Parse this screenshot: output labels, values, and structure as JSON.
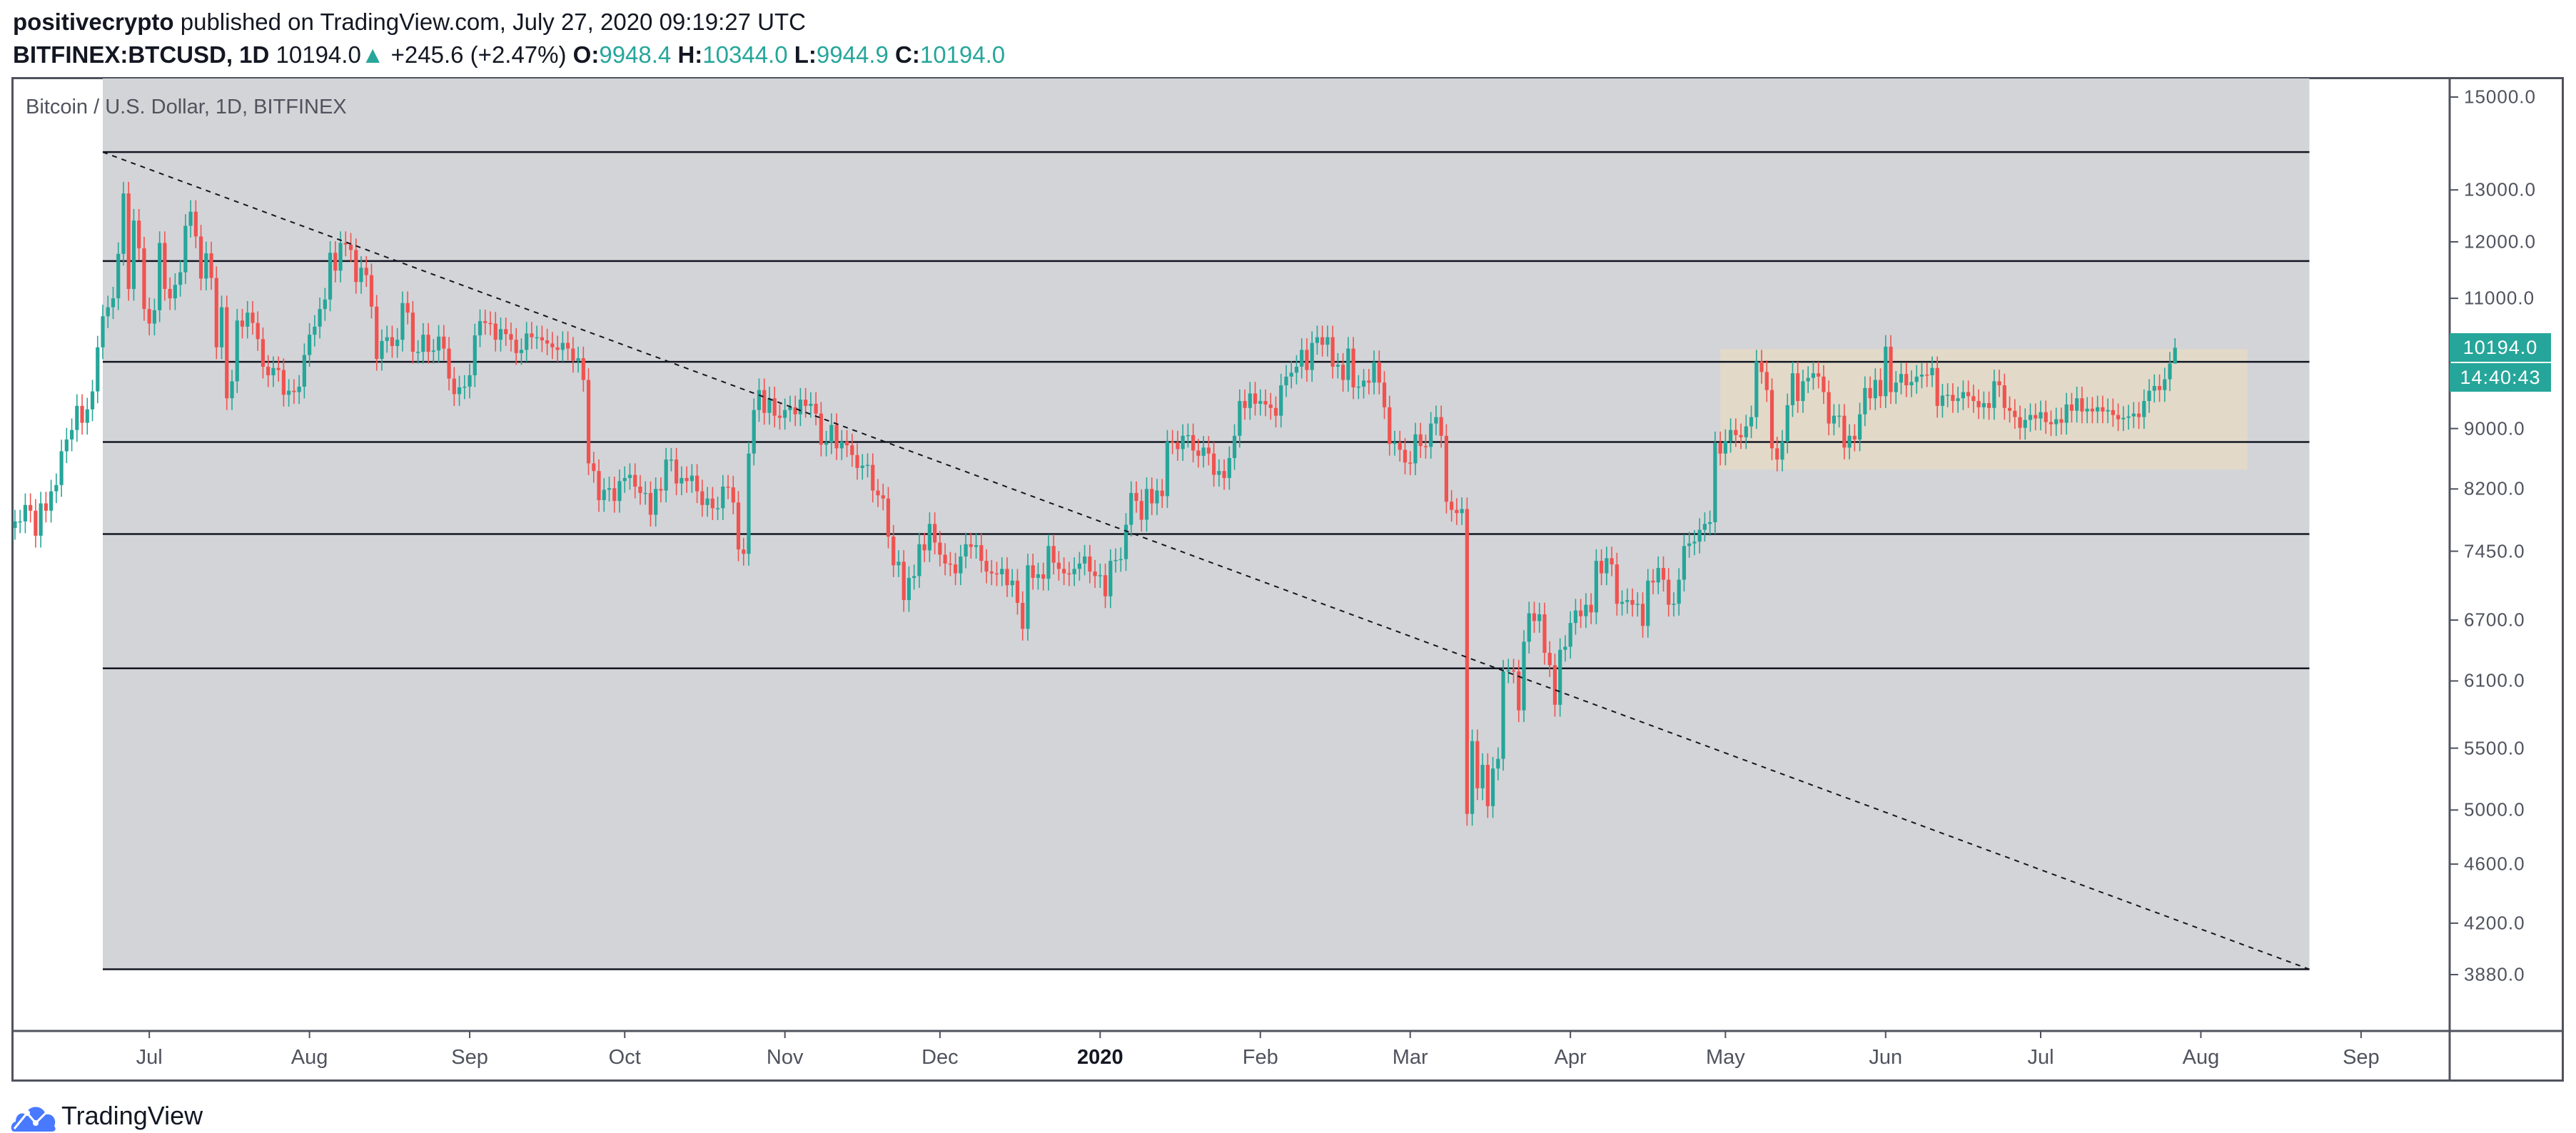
{
  "header": {
    "author": "positivecrypto",
    "published": "published on TradingView.com, July 27, 2020 09:19:27 UTC",
    "symbol": "BITFINEX:BTCUSD, 1D",
    "last": "10194.0",
    "change_icon": "triangle-up-icon",
    "change": "+245.6 (+2.47%)",
    "o_label": "O:",
    "o": "9948.4",
    "h_label": "H:",
    "h": "10344.0",
    "l_label": "L:",
    "l": "9944.9",
    "c_label": "C:",
    "c": "10194.0"
  },
  "colors": {
    "up": "#26a69a",
    "down": "#ef5350",
    "zone": "#d3d4d7",
    "range_box": "#e2d9c9",
    "axis": "#50535e"
  },
  "footer": {
    "brand": "TradingView",
    "logo_icon": "tradingview-cloud-icon"
  },
  "chart_data": {
    "type": "candlestick",
    "title": "Bitcoin / U.S. Dollar, 1D, BITFINEX",
    "y_scale": "log",
    "ylim": [
      3700,
      15500
    ],
    "y_ticks": [
      "15000.0",
      "13000.0",
      "12000.0",
      "11000.0",
      "9000.0",
      "8200.0",
      "7450.0",
      "6700.0",
      "6100.0",
      "5500.0",
      "5000.0",
      "4600.0",
      "4200.0",
      "3880.0"
    ],
    "x_ticks": [
      {
        "label": "Jul",
        "date": "2019-07-01"
      },
      {
        "label": "Aug",
        "date": "2019-08-01"
      },
      {
        "label": "Sep",
        "date": "2019-09-01"
      },
      {
        "label": "Oct",
        "date": "2019-10-01"
      },
      {
        "label": "Nov",
        "date": "2019-11-01"
      },
      {
        "label": "Dec",
        "date": "2019-12-01"
      },
      {
        "label": "2020",
        "date": "2020-01-01",
        "year": true
      },
      {
        "label": "Feb",
        "date": "2020-02-01"
      },
      {
        "label": "Mar",
        "date": "2020-03-01"
      },
      {
        "label": "Apr",
        "date": "2020-04-01"
      },
      {
        "label": "May",
        "date": "2020-05-01"
      },
      {
        "label": "Jun",
        "date": "2020-06-01"
      },
      {
        "label": "Jul",
        "date": "2020-07-01"
      },
      {
        "label": "Aug",
        "date": "2020-08-01"
      },
      {
        "label": "Sep",
        "date": "2020-09-01"
      }
    ],
    "current_price_label": "10194.0",
    "countdown": "14:40:43",
    "last_candle": {
      "open": 9948.4,
      "high": 10344.0,
      "low": 9944.9,
      "close": 10194.0
    },
    "first_date": "2019-06-05",
    "closes": [
      7800,
      7800,
      8000,
      7930,
      7630,
      8020,
      7930,
      8170,
      8250,
      8690,
      8850,
      8980,
      9320,
      9080,
      9270,
      9530,
      10200,
      10700,
      10850,
      11000,
      11780,
      12930,
      11160,
      12400,
      11880,
      10820,
      10580,
      10800,
      11980,
      11160,
      11000,
      11230,
      11450,
      12300,
      12570,
      12100,
      11340,
      11790,
      11350,
      10200,
      10850,
      9430,
      9680,
      10630,
      10530,
      10760,
      10590,
      10330,
      9900,
      9770,
      9880,
      9850,
      9480,
      9540,
      9520,
      9600,
      10080,
      10400,
      10530,
      10820,
      10980,
      11800,
      11480,
      11980,
      11950,
      11850,
      11280,
      11530,
      11400,
      10860,
      10020,
      10300,
      10360,
      10220,
      10320,
      10920,
      10760,
      10130,
      10130,
      10400,
      10130,
      10150,
      10370,
      10180,
      9720,
      9490,
      9590,
      9600,
      9770,
      10390,
      10620,
      10590,
      10580,
      10320,
      10490,
      10410,
      10320,
      10110,
      10160,
      10420,
      10360,
      10360,
      10310,
      10260,
      10200,
      10160,
      10270,
      10180,
      9990,
      10030,
      9700,
      8530,
      8430,
      8060,
      8190,
      8210,
      8050,
      8300,
      8340,
      8380,
      8230,
      8150,
      8150,
      7880,
      8200,
      8180,
      8580,
      8580,
      8270,
      8340,
      8300,
      8370,
      8170,
      8000,
      8080,
      7960,
      7960,
      8230,
      8220,
      8030,
      7470,
      7420,
      8660,
      9260,
      9550,
      9220,
      9430,
      9180,
      9150,
      9260,
      9300,
      9200,
      9410,
      9320,
      9350,
      9210,
      8780,
      8810,
      9050,
      8730,
      8820,
      8770,
      8640,
      8470,
      8500,
      8510,
      8180,
      8120,
      8080,
      7620,
      7290,
      7330,
      6910,
      7150,
      7170,
      7530,
      7460,
      7770,
      7550,
      7410,
      7310,
      7300,
      7200,
      7390,
      7530,
      7500,
      7520,
      7340,
      7220,
      7200,
      7190,
      7250,
      7070,
      7120,
      6880,
      6610,
      7290,
      7150,
      7190,
      7140,
      7510,
      7320,
      7250,
      7200,
      7190,
      7250,
      7310,
      7390,
      7220,
      7170,
      7180,
      6950,
      7340,
      7350,
      7360,
      7760,
      8150,
      8050,
      7820,
      8200,
      8020,
      8180,
      8110,
      8820,
      8810,
      8720,
      8900,
      8910,
      8700,
      8630,
      8740,
      8660,
      8380,
      8430,
      8340,
      8600,
      8900,
      9390,
      9290,
      9500,
      9350,
      9390,
      9340,
      9290,
      9180,
      9620,
      9750,
      9810,
      9900,
      10160,
      9850,
      10270,
      10360,
      10240,
      10360,
      9900,
      9930,
      9700,
      10180,
      9590,
      9600,
      9690,
      9660,
      9970,
      9660,
      9300,
      8790,
      8810,
      8710,
      8540,
      8530,
      8920,
      8760,
      8750,
      9070,
      9160,
      8900,
      8040,
      7940,
      7900,
      7950,
      4970,
      5560,
      5170,
      5360,
      5030,
      5330,
      5410,
      6190,
      6200,
      6190,
      5830,
      6480,
      6770,
      6690,
      6760,
      6370,
      6250,
      5880,
      6400,
      6430,
      6670,
      6800,
      6740,
      6860,
      6780,
      7340,
      7200,
      7370,
      7300,
      6870,
      6890,
      6910,
      6860,
      6870,
      6640,
      7120,
      7100,
      7260,
      7130,
      6860,
      6870,
      7130,
      7510,
      7540,
      7560,
      7700,
      7770,
      7790,
      8800,
      8660,
      8830,
      8980,
      8910,
      8880,
      9030,
      9160,
      9980,
      9820,
      9550,
      8730,
      8580,
      8820,
      9330,
      9800,
      9390,
      9680,
      9730,
      9800,
      9750,
      9520,
      9070,
      9180,
      9180,
      8740,
      8900,
      8850,
      9200,
      9580,
      9430,
      9700,
      9460,
      10210,
      9520,
      9660,
      9790,
      9620,
      9670,
      9750,
      9780,
      9770,
      9880,
      9320,
      9470,
      9480,
      9390,
      9430,
      9520,
      9460,
      9390,
      9300,
      9360,
      9290,
      9680,
      9620,
      9290,
      9250,
      9160,
      9010,
      9120,
      9190,
      9140,
      9230,
      9090,
      9060,
      9130,
      9080,
      9340,
      9250,
      9430,
      9240,
      9280,
      9240,
      9300,
      9240,
      9260,
      9190,
      9130,
      9150,
      9170,
      9210,
      9160,
      9390,
      9540,
      9610,
      9550,
      9710,
      9948.4,
      10194.0
    ],
    "drawings": {
      "shaded_zone": {
        "from": "2019-06-22",
        "to": "2020-08-22",
        "price_bottom": 3912
      },
      "horizontal_levels": [
        13780,
        11650,
        9975,
        8815,
        7650,
        6220,
        3912
      ],
      "trendline": {
        "style": "dashed",
        "start": {
          "date": "2019-06-22",
          "price": 13780
        },
        "end": {
          "date": "2020-08-22",
          "price": 3912
        }
      },
      "range_box": {
        "from": "2020-04-30",
        "to": "2020-08-10",
        "price_top": 10174,
        "price_bottom": 8450
      }
    }
  }
}
